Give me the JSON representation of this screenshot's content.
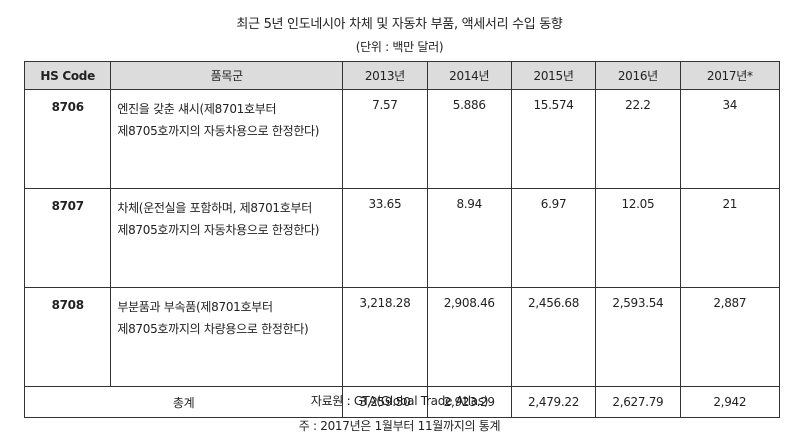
{
  "title": "최근 5년 인도네시아 차체 및 자동차 부품, 액세서리 수입 동향",
  "unit": "(단위 : 백만 달러)",
  "table": {
    "headers": [
      "HS Code",
      "품목군",
      "2013년",
      "2014년",
      "2015년",
      "2016년",
      "2017년*"
    ],
    "rows": [
      {
        "code": "8706",
        "description": "엔진을 갖춘 섀시(제8701호부터 제8705호까지의 자동차용으로 한정한다)",
        "values": [
          "7.57",
          "5.886",
          "15.574",
          "22.2",
          "34"
        ]
      },
      {
        "code": "8707",
        "description": "차체(운전실을 포함하며, 제8701호부터 제8705호까지의 자동차용으로 한정한다)",
        "values": [
          "33.65",
          "8.94",
          "6.97",
          "12.05",
          "21"
        ]
      },
      {
        "code": "8708",
        "description": "부분품과 부속품(제8701호부터 제8705호까지의 차량용으로 한정한다)",
        "values": [
          "3,218.28",
          "2,908.46",
          "2,456.68",
          "2,593.54",
          "2,887"
        ]
      }
    ],
    "total": {
      "label": "총계",
      "values": [
        "3,259.50",
        "2,923.29",
        "2,479.22",
        "2,627.79",
        "2,942"
      ]
    }
  },
  "source": "자료원 : GTA(Global Trade Atlas)",
  "note": "주 : 2017년은 1월부터 11월까지의 통계"
}
